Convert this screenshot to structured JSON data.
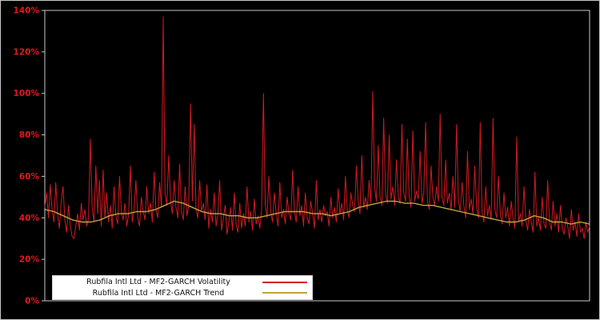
{
  "figure": {
    "background": "#000000",
    "border_color": "#c8c8c8"
  },
  "axes": {
    "y_ticks": [
      "0%",
      "20%",
      "40%",
      "60%",
      "80%",
      "100%",
      "120%",
      "140%"
    ],
    "y_tick_values": [
      0,
      20,
      40,
      60,
      80,
      100,
      120,
      140
    ],
    "tick_label_color": "#e0191e",
    "axis_color": "#c8c8c8"
  },
  "legend": {
    "items": [
      {
        "label": "Rubfila Intl Ltd - MF2-GARCH Volatility",
        "color": "#d21a22"
      },
      {
        "label": "Rubfila Intl Ltd - MF2-GARCH Trend",
        "color": "#bfa63c"
      }
    ]
  },
  "chart_data": {
    "type": "line",
    "title": "",
    "xlabel": "",
    "ylabel": "",
    "ylim": [
      0,
      140
    ],
    "grid": false,
    "legend_position": "bottom-left",
    "series": [
      {
        "name": "Rubfila Intl Ltd - MF2-GARCH Volatility",
        "color": "#d21a22",
        "values": [
          45,
          52,
          40,
          56,
          44,
          38,
          57,
          42,
          35,
          48,
          55,
          39,
          33,
          46,
          36,
          31,
          30,
          36,
          42,
          34,
          47,
          39,
          44,
          36,
          40,
          78,
          45,
          38,
          65,
          42,
          58,
          36,
          63,
          40,
          52,
          38,
          46,
          35,
          55,
          41,
          37,
          60,
          43,
          39,
          47,
          36,
          42,
          65,
          38,
          44,
          58,
          40,
          36,
          50,
          43,
          39,
          55,
          42,
          47,
          38,
          62,
          44,
          40,
          57,
          45,
          137,
          52,
          46,
          70,
          48,
          42,
          58,
          45,
          40,
          66,
          43,
          39,
          55,
          41,
          46,
          95,
          48,
          85,
          44,
          40,
          58,
          43,
          47,
          39,
          56,
          35,
          44,
          38,
          52,
          36,
          42,
          58,
          34,
          40,
          46,
          32,
          38,
          45,
          34,
          52,
          37,
          33,
          47,
          35,
          42,
          36,
          55,
          38,
          43,
          34,
          49,
          37,
          41,
          35,
          44,
          100,
          46,
          40,
          60,
          43,
          38,
          52,
          42,
          36,
          57,
          40,
          44,
          37,
          50,
          42,
          39,
          63,
          43,
          38,
          55,
          41,
          46,
          36,
          52,
          40,
          37,
          48,
          42,
          35,
          58,
          39,
          44,
          38,
          46,
          41,
          43,
          36,
          50,
          40,
          45,
          38,
          54,
          42,
          47,
          39,
          60,
          44,
          40,
          52,
          46,
          43,
          65,
          48,
          42,
          70,
          45,
          50,
          44,
          58,
          47,
          101,
          55,
          48,
          75,
          50,
          46,
          88,
          52,
          47,
          80,
          49,
          55,
          46,
          68,
          50,
          47,
          85,
          52,
          48,
          78,
          50,
          45,
          82,
          48,
          53,
          49,
          72,
          47,
          52,
          86,
          48,
          44,
          65,
          50,
          46,
          55,
          48,
          90,
          50,
          46,
          68,
          47,
          52,
          44,
          60,
          45,
          85,
          48,
          43,
          57,
          46,
          40,
          72,
          44,
          49,
          42,
          65,
          45,
          40,
          86,
          43,
          38,
          55,
          41,
          46,
          39,
          88,
          44,
          40,
          60,
          42,
          37,
          52,
          40,
          45,
          36,
          48,
          40,
          35,
          79,
          38,
          42,
          36,
          55,
          39,
          34,
          44,
          38,
          33,
          62,
          36,
          40,
          34,
          50,
          37,
          35,
          58,
          38,
          34,
          48,
          36,
          42,
          33,
          46,
          35,
          32,
          40,
          36,
          30,
          44,
          34,
          38,
          31,
          42,
          33,
          35,
          30,
          38,
          33,
          36
        ]
      },
      {
        "name": "Rubfila Intl Ltd - MF2-GARCH Trend",
        "color": "#bfa63c",
        "values": [
          44,
          43,
          41,
          39,
          38,
          38,
          39,
          41,
          42,
          42,
          43,
          43,
          44,
          46,
          48,
          47,
          45,
          43,
          42,
          42,
          41,
          41,
          40,
          40,
          41,
          42,
          43,
          43,
          43,
          42,
          42,
          41,
          42,
          43,
          45,
          46,
          47,
          48,
          48,
          47,
          47,
          46,
          46,
          45,
          44,
          43,
          42,
          41,
          40,
          39,
          38,
          38,
          39,
          41,
          40,
          38,
          38,
          37,
          38,
          37
        ]
      }
    ]
  }
}
